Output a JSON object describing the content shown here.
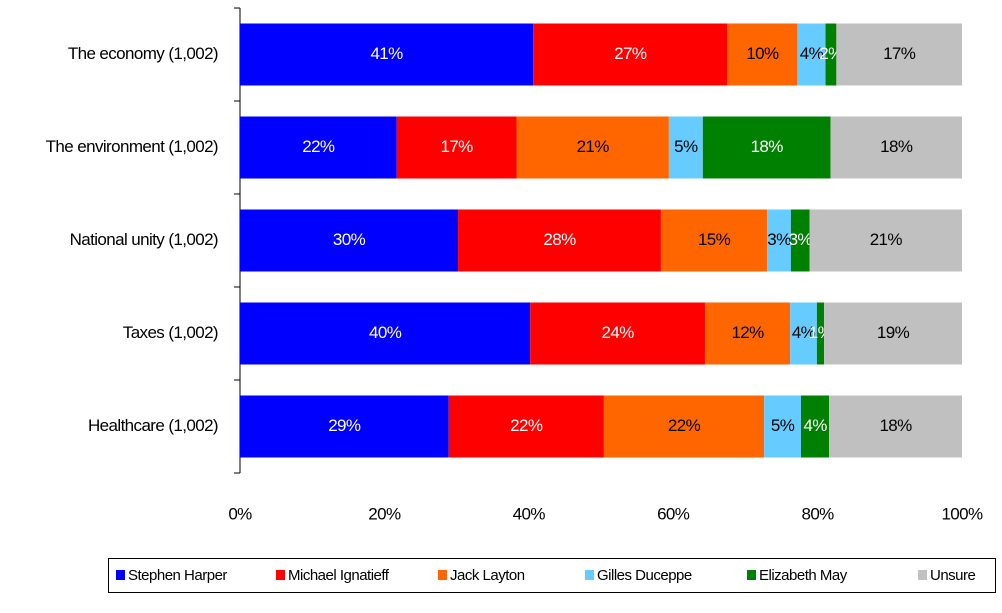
{
  "chart_data": {
    "type": "stacked_barh",
    "categories": [
      "The economy (1,002)",
      "The environment (1,002)",
      "National unity (1,002)",
      "Taxes (1,002)",
      "Healthcare (1,002)"
    ],
    "series": [
      {
        "name": "Stephen Harper",
        "color": "#0000ff",
        "values": [
          40.6,
          21.7,
          30.2,
          40.2,
          28.9
        ],
        "value_labels": [
          "41%",
          "22%",
          "30%",
          "40%",
          "29%"
        ]
      },
      {
        "name": "Michael Ignatieff",
        "color": "#ff0000",
        "values": [
          26.9,
          16.6,
          28.1,
          24.2,
          21.5
        ],
        "value_labels": [
          "27%",
          "17%",
          "28%",
          "24%",
          "22%"
        ]
      },
      {
        "name": "Jack Layton",
        "color": "#ff6600",
        "values": [
          9.7,
          21.1,
          14.7,
          11.8,
          22.2
        ],
        "value_labels": [
          "10%",
          "21%",
          "15%",
          "12%",
          "22%"
        ]
      },
      {
        "name": "Gilles Duceppe",
        "color": "#66ccff",
        "values": [
          3.9,
          4.7,
          3.3,
          3.7,
          5.1
        ],
        "value_labels": [
          "4%",
          "5%",
          "3%",
          "4%",
          "5%"
        ]
      },
      {
        "name": "Elizabeth May",
        "color": "#008000",
        "values": [
          1.5,
          17.7,
          2.6,
          1.0,
          3.9
        ],
        "value_labels": [
          "2%",
          "18%",
          "3%",
          "1%",
          "4%"
        ]
      },
      {
        "name": "Unsure",
        "color": "#c0c0c0",
        "values": [
          17.4,
          18.2,
          21.1,
          19.1,
          18.4
        ],
        "value_labels": [
          "17%",
          "18%",
          "21%",
          "19%",
          "18%"
        ]
      }
    ],
    "xlim": [
      0,
      100
    ],
    "xticks": [
      {
        "value": 0,
        "label": "0%"
      },
      {
        "value": 20,
        "label": "20%"
      },
      {
        "value": 40,
        "label": "40%"
      },
      {
        "value": 60,
        "label": "60%"
      },
      {
        "value": 80,
        "label": "80%"
      },
      {
        "value": 100,
        "label": "100%"
      }
    ],
    "legend": "bottom"
  }
}
